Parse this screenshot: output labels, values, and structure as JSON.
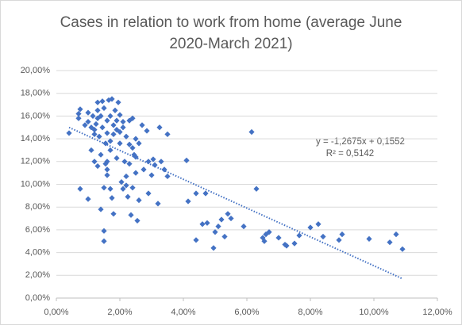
{
  "chart_data": {
    "type": "scatter",
    "title": "Cases in relation to work from home (average June 2020-March 2021)",
    "color": "#4472c4",
    "grid": true,
    "xlim": [
      0,
      12
    ],
    "ylim": [
      0,
      20
    ],
    "xticks": [
      {
        "value": 0,
        "label": "0,00%"
      },
      {
        "value": 2,
        "label": "2,00%"
      },
      {
        "value": 4,
        "label": "4,00%"
      },
      {
        "value": 6,
        "label": "6,00%"
      },
      {
        "value": 8,
        "label": "8,00%"
      },
      {
        "value": 10,
        "label": "10,00%"
      },
      {
        "value": 12,
        "label": "12,00%"
      }
    ],
    "yticks": [
      {
        "value": 0,
        "label": "0,00%"
      },
      {
        "value": 2,
        "label": "2,00%"
      },
      {
        "value": 4,
        "label": "4,00%"
      },
      {
        "value": 6,
        "label": "6,00%"
      },
      {
        "value": 8,
        "label": "8,00%"
      },
      {
        "value": 10,
        "label": "10,00%"
      },
      {
        "value": 12,
        "label": "12,00%"
      },
      {
        "value": 14,
        "label": "14,00%"
      },
      {
        "value": 16,
        "label": "16,00%"
      },
      {
        "value": 18,
        "label": "18,00%"
      },
      {
        "value": 20,
        "label": "20,00%"
      }
    ],
    "x": [
      0.4,
      0.7,
      0.7,
      0.75,
      0.75,
      0.9,
      1.0,
      1.0,
      1.0,
      1.1,
      1.1,
      1.15,
      1.2,
      1.2,
      1.25,
      1.3,
      1.3,
      1.3,
      1.35,
      1.4,
      1.4,
      1.45,
      1.45,
      1.5,
      1.5,
      1.5,
      1.5,
      1.55,
      1.6,
      1.6,
      1.6,
      1.6,
      1.6,
      1.65,
      1.7,
      1.7,
      1.7,
      1.75,
      1.75,
      1.8,
      1.8,
      1.8,
      1.85,
      1.9,
      1.9,
      1.95,
      2.0,
      2.0,
      2.05,
      2.1,
      2.1,
      2.15,
      2.2,
      2.2,
      2.25,
      2.3,
      2.3,
      2.3,
      2.35,
      2.4,
      2.4,
      2.45,
      2.5,
      2.5,
      2.55,
      2.6,
      2.6,
      2.7,
      2.75,
      2.85,
      2.9,
      2.9,
      3.0,
      3.05,
      3.1,
      3.2,
      3.25,
      3.3,
      3.4,
      3.5,
      3.5,
      4.1,
      4.15,
      4.4,
      4.4,
      4.6,
      4.7,
      4.75,
      4.95,
      5.0,
      5.1,
      5.2,
      5.3,
      5.4,
      5.5,
      5.9,
      6.15,
      6.3,
      6.5,
      6.55,
      6.6,
      6.7,
      7.0,
      7.2,
      7.25,
      7.5,
      7.65,
      8.0,
      8.25,
      8.4,
      8.9,
      9.0,
      9.85,
      10.5,
      10.7,
      10.9,
      1.2,
      1.4,
      1.9,
      2.0,
      2.1,
      2.5,
      1.55,
      2.2,
      2.4,
      1.3,
      1.7
    ],
    "values": [
      14.5,
      15.8,
      16.2,
      16.6,
      9.6,
      15.2,
      16.3,
      15.5,
      8.7,
      13.0,
      15.0,
      16.0,
      12.0,
      14.4,
      15.3,
      16.5,
      17.2,
      11.6,
      14.2,
      12.6,
      7.8,
      15.0,
      17.3,
      16.7,
      9.7,
      5.9,
      5.0,
      13.6,
      15.6,
      14.5,
      12.0,
      10.8,
      11.3,
      17.4,
      16.0,
      13.0,
      9.6,
      17.5,
      8.8,
      14.4,
      15.2,
      7.4,
      16.5,
      14.8,
      12.3,
      17.2,
      16.1,
      13.6,
      10.2,
      15.5,
      9.6,
      12.0,
      14.2,
      10.7,
      8.9,
      15.6,
      13.5,
      11.8,
      7.3,
      15.8,
      9.7,
      12.6,
      11.0,
      14.0,
      6.8,
      13.6,
      8.6,
      15.2,
      11.3,
      14.7,
      9.2,
      12.0,
      10.8,
      12.2,
      11.7,
      8.3,
      15.0,
      12.0,
      11.3,
      14.4,
      10.7,
      12.1,
      8.5,
      9.2,
      5.1,
      6.5,
      9.2,
      6.6,
      4.4,
      5.8,
      6.3,
      6.9,
      5.4,
      7.4,
      7.0,
      6.3,
      14.6,
      9.6,
      5.3,
      5.0,
      5.6,
      5.8,
      5.3,
      4.7,
      4.6,
      4.8,
      5.5,
      6.2,
      6.5,
      5.4,
      5.1,
      5.6,
      5.2,
      4.9,
      5.6,
      4.3,
      14.8,
      16.0,
      15.6,
      14.6,
      15.0,
      12.4,
      11.8,
      9.9,
      13.2,
      15.8,
      13.8
    ],
    "trendline": {
      "x": [
        0.4,
        10.9
      ],
      "values": [
        15.0,
        1.7
      ]
    },
    "annotations": [
      "y = -1,2675x + 0,1552",
      "R² = 0,5142"
    ]
  }
}
